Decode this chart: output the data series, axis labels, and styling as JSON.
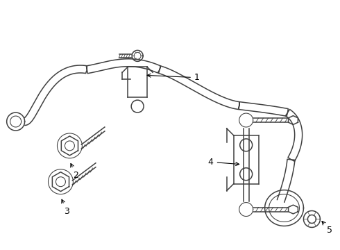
{
  "bg_color": "#ffffff",
  "line_color": "#404040",
  "lw": 1.1,
  "lw_thick": 1.4,
  "lw_thin": 0.7,
  "figsize": [
    4.9,
    3.6
  ],
  "dpi": 100
}
